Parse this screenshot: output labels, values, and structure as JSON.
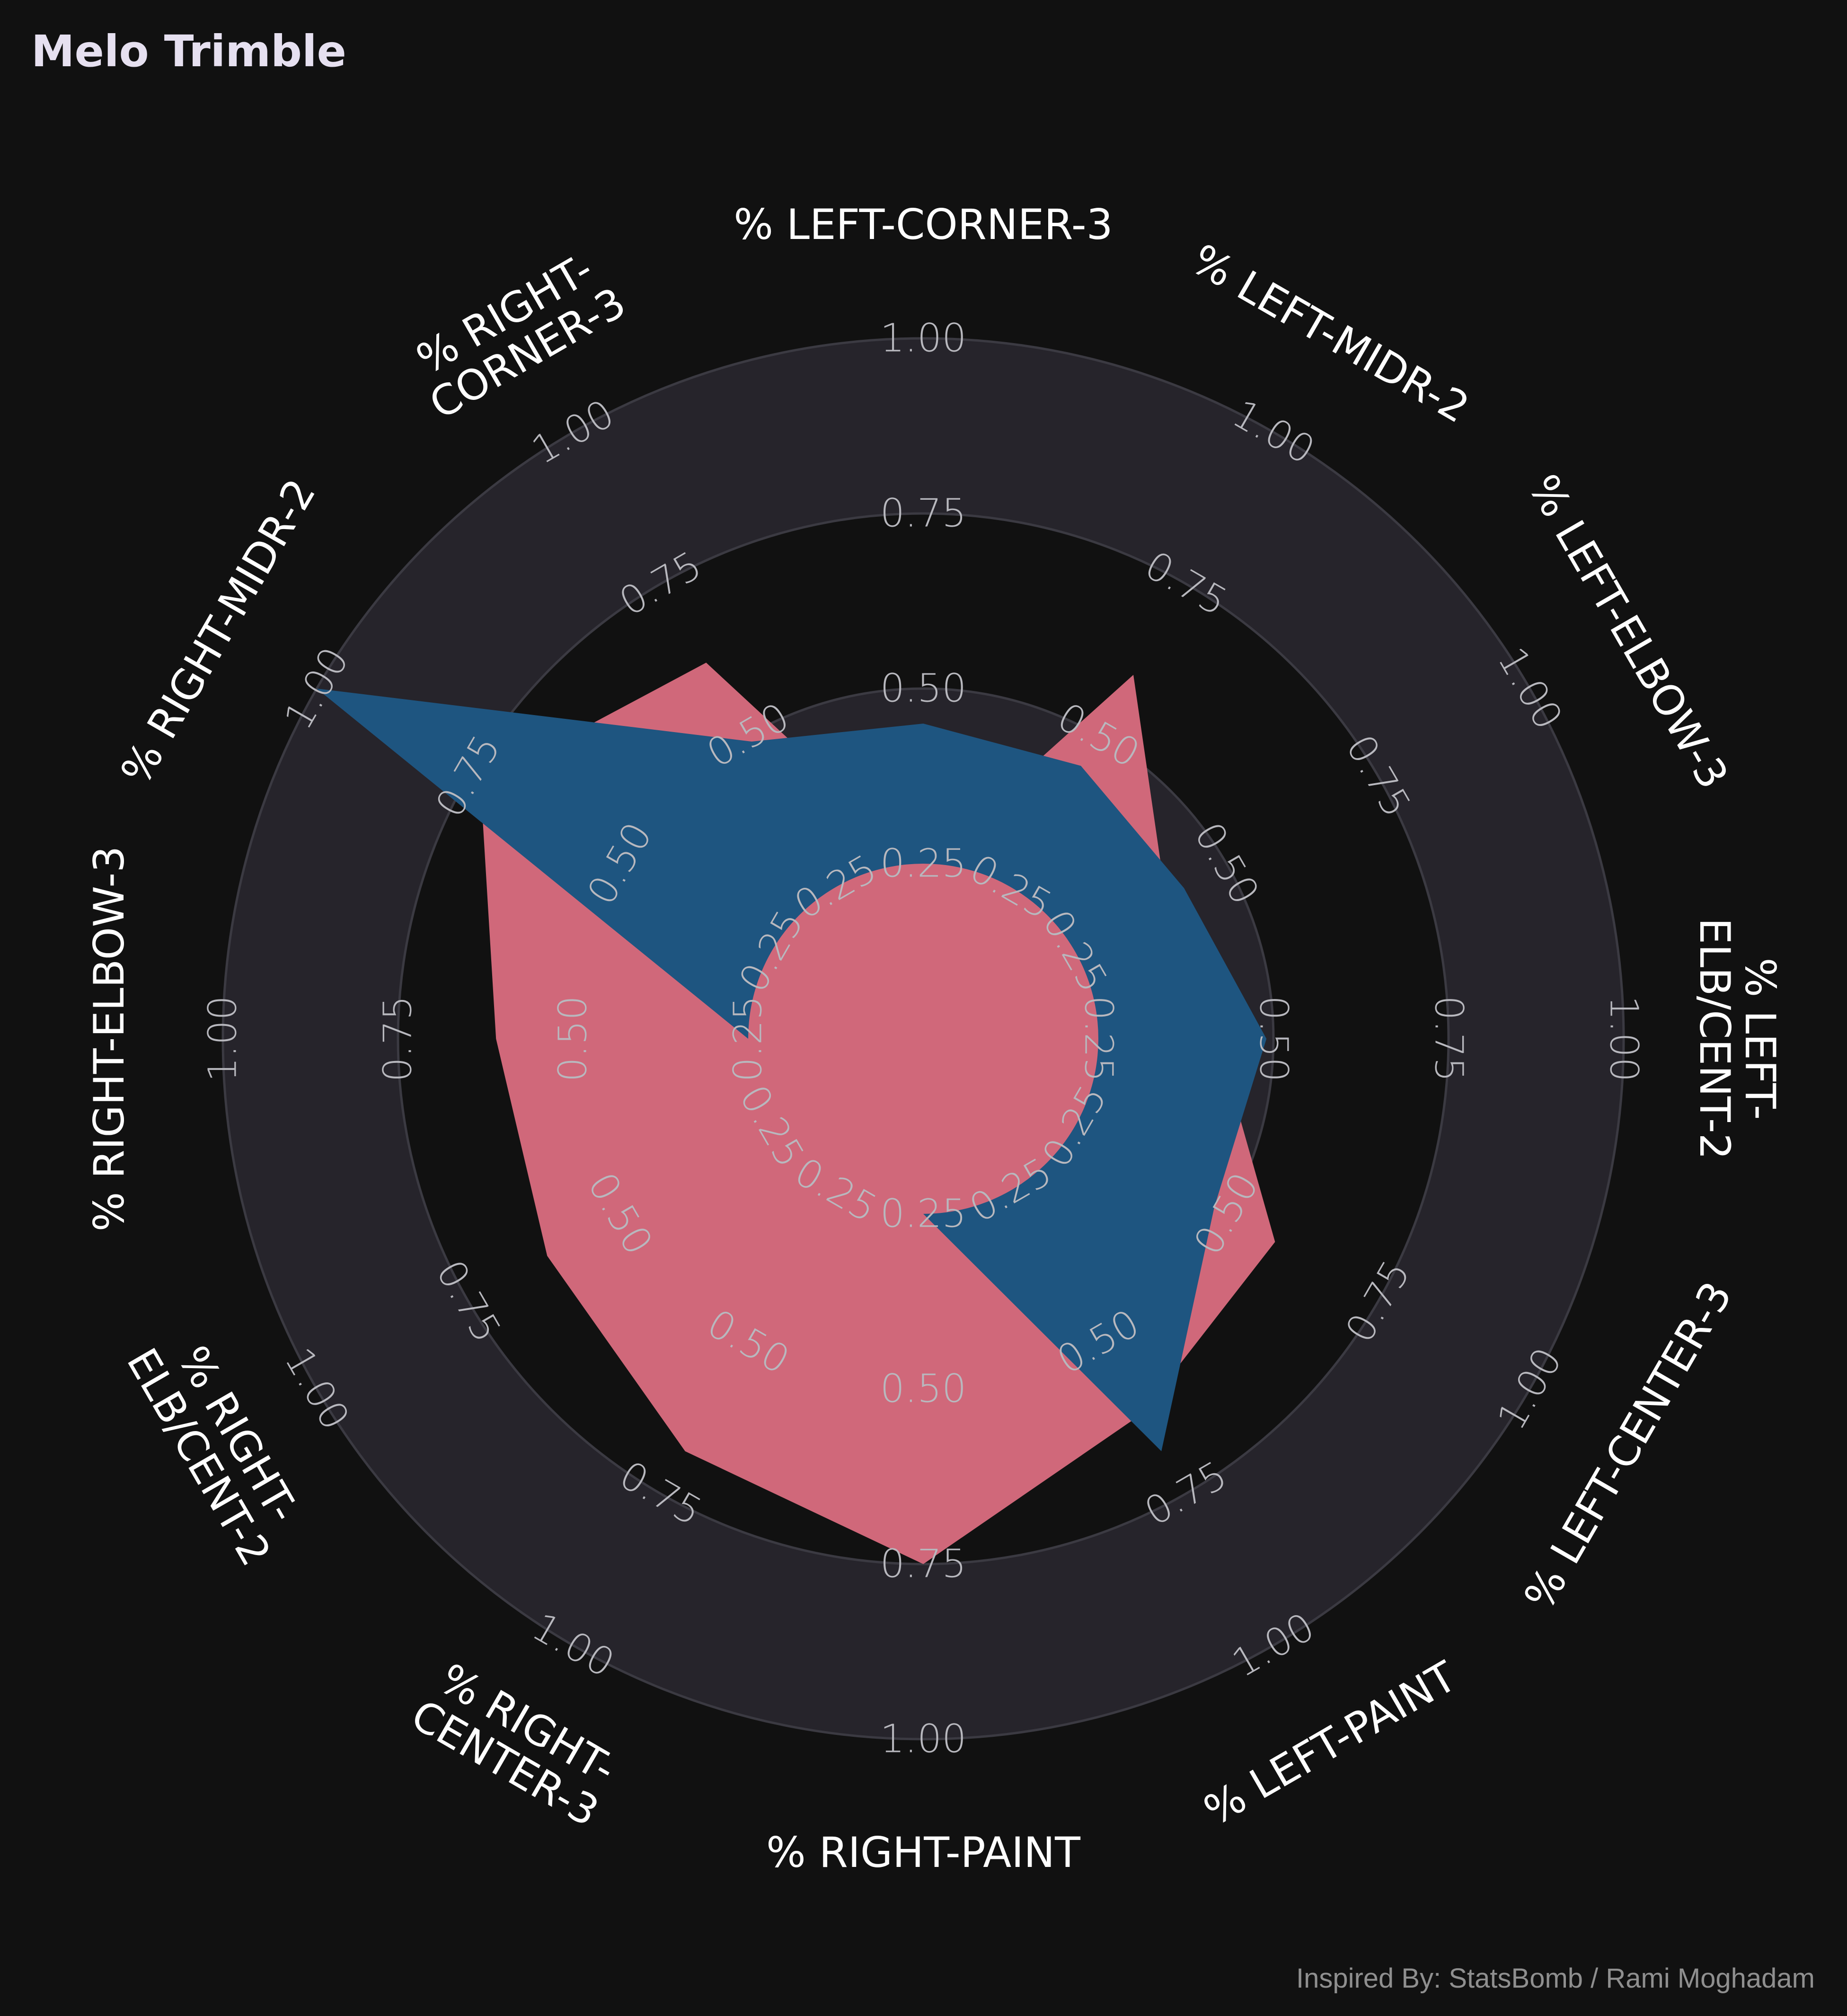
{
  "title": "Melo Trimble",
  "credit": "Inspired By: StatsBomb / Rami Moghadam",
  "colors": {
    "background": "#111111",
    "band_light": "#26242b",
    "band_dark": "#111111",
    "ring_stroke": "#3b3a42",
    "series_pink": "#d0687a",
    "series_blue": "#1e5580",
    "label_text": "#ffffff",
    "tick_text": "#b8b8be",
    "title_text": "#e6e0f0"
  },
  "chart_data": {
    "type": "radar",
    "title": "Melo Trimble",
    "axes": [
      {
        "label": "% LEFT-CORNER-3",
        "ticks": [
          "0.25",
          "0.50",
          "0.75",
          "1.00"
        ]
      },
      {
        "label": "% LEFT-MIDR-2",
        "ticks": [
          "0.25",
          "0.50",
          "0.75",
          "1.00"
        ]
      },
      {
        "label": "% LEFT-ELBOW-3",
        "ticks": [
          "0.25",
          "0.50",
          "0.75",
          "1.00"
        ]
      },
      {
        "label": "% LEFT-ELB/CENT-2",
        "lines": [
          "% LEFT-",
          "ELB/CENT-2"
        ],
        "ticks": [
          "0.25",
          "0.50",
          "0.75",
          "1.00"
        ]
      },
      {
        "label": "% LEFT-CENTER-3",
        "ticks": [
          "0.25",
          "0.50",
          "0.75",
          "1.00"
        ]
      },
      {
        "label": "% LEFT-PAINT",
        "ticks": [
          "0.25",
          "0.50",
          "0.75",
          "1.00"
        ]
      },
      {
        "label": "% RIGHT-PAINT",
        "ticks": [
          "0.25",
          "0.50",
          "0.75",
          "1.00"
        ]
      },
      {
        "label": "% RIGHT-CENTER-3",
        "lines": [
          "% RIGHT-",
          "CENTER-3"
        ],
        "ticks": [
          "0.25",
          "0.50",
          "0.75",
          "1.00"
        ]
      },
      {
        "label": "% RIGHT-ELB/CENT-2",
        "lines": [
          "% RIGHT-",
          "ELB/CENT-2"
        ],
        "ticks": [
          "0.25",
          "0.50",
          "0.75",
          "1.00"
        ]
      },
      {
        "label": "% RIGHT-ELBOW-3",
        "ticks": [
          "0.25",
          "0.50",
          "0.75",
          "1.00"
        ]
      },
      {
        "label": "% RIGHT-MIDR-2",
        "ticks": [
          "0.25",
          "0.50",
          "0.75",
          "1.00"
        ]
      },
      {
        "label": "% RIGHT-CORNER-3",
        "lines": [
          "% RIGHT-",
          "CORNER-3"
        ],
        "ticks": [
          "0.25",
          "0.50",
          "0.75",
          "1.00"
        ]
      }
    ],
    "series": [
      {
        "color": "#d0687a",
        "values": [
          0.25,
          0.6,
          0.4,
          0.42,
          0.58,
          0.62,
          0.75,
          0.68,
          0.62,
          0.61,
          0.73,
          0.62
        ]
      },
      {
        "color": "#1e5580",
        "values": [
          0.45,
          0.45,
          0.43,
          0.49,
          0.48,
          0.68,
          0.25,
          0.25,
          0.25,
          0.25,
          1.0,
          0.49
        ]
      }
    ],
    "inner_circle_value": 0.25,
    "r_range": [
      0,
      1
    ],
    "ring_values": [
      0.25,
      0.5,
      0.75,
      1.0
    ],
    "grid": true,
    "legend": "none"
  }
}
